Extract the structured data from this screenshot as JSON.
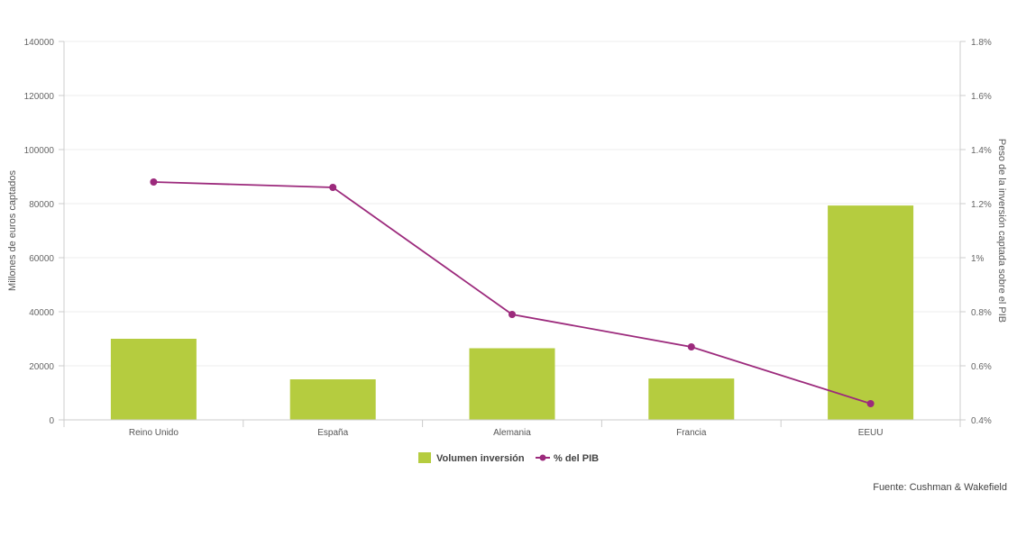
{
  "chart_data": {
    "type": "bar+line",
    "categories": [
      "Reino Unido",
      "España",
      "Alemania",
      "Francia",
      "EEUU"
    ],
    "series": [
      {
        "name": "Volumen inversión",
        "type": "bar",
        "axis": "left",
        "color": "#b5cc3f",
        "values": [
          30000,
          15000,
          26500,
          15300,
          79300
        ]
      },
      {
        "name": "% del PIB",
        "type": "line",
        "axis": "right",
        "color": "#9c2a7c",
        "values": [
          1.28,
          1.26,
          0.79,
          0.67,
          0.46
        ]
      }
    ],
    "ylabel": "Millones de euros captados",
    "ylabel_right": "Peso de la inversión captada sobre el PIB",
    "ylim": [
      0,
      140000
    ],
    "ylim_right": [
      0.4,
      1.8
    ],
    "yticks": [
      "0",
      "20000",
      "40000",
      "60000",
      "80000",
      "100000",
      "120000",
      "140000"
    ],
    "yticks_right": [
      "0.4%",
      "0.6%",
      "0.8%",
      "1%",
      "1.2%",
      "1.4%",
      "1.6%",
      "1.8%"
    ],
    "grid": true,
    "legend": "bottom-center"
  },
  "source": "Fuente: Cushman & Wakefield",
  "colors": {
    "bar": "#b5cc3f",
    "line": "#9c2a7c",
    "grid": "#eeeeee",
    "axis": "#cccccc"
  }
}
